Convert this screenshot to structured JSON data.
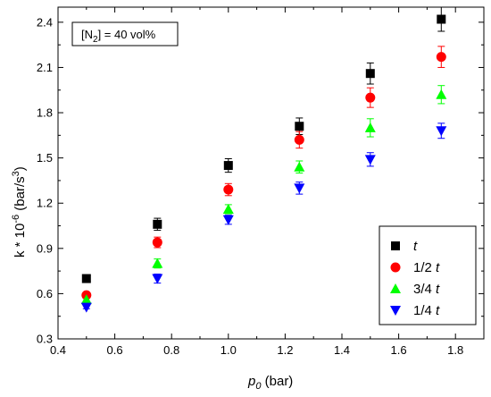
{
  "chart_data": {
    "type": "scatter",
    "annotation": {
      "prefix": "[N",
      "subscript": "2",
      "suffix": "] = 40 vol%"
    },
    "xlabel": {
      "main": "p",
      "sub": "0",
      "unit": " (bar)"
    },
    "ylabel": {
      "prefix": "k * 10",
      "sup": "-6",
      "mid": " (bar/s",
      "sup2": "3",
      "suffix": ")"
    },
    "xlim": [
      0.4,
      1.9
    ],
    "ylim": [
      0.3,
      2.5
    ],
    "x_ticks": [
      "0.4",
      "0.6",
      "0.8",
      "1.0",
      "1.2",
      "1.4",
      "1.6",
      "1.8"
    ],
    "y_ticks": [
      "0.3",
      "0.6",
      "0.9",
      "1.2",
      "1.5",
      "1.8",
      "2.1",
      "2.4"
    ],
    "x": [
      0.5,
      0.75,
      1.0,
      1.25,
      1.5,
      1.75
    ],
    "legend_position": "bottom-right",
    "series": [
      {
        "name_prefix": "",
        "name_t": "t",
        "marker": "square",
        "color": "#000000",
        "values": [
          0.7,
          1.06,
          1.45,
          1.71,
          2.06,
          2.42
        ],
        "errors": [
          0.015,
          0.04,
          0.045,
          0.055,
          0.07,
          0.08
        ]
      },
      {
        "name_prefix": "1/2 ",
        "name_t": "t",
        "marker": "circle",
        "color": "#ff0000",
        "values": [
          0.59,
          0.94,
          1.29,
          1.62,
          1.9,
          2.17
        ],
        "errors": [
          0.015,
          0.035,
          0.04,
          0.055,
          0.065,
          0.07
        ]
      },
      {
        "name_prefix": "3/4 ",
        "name_t": "t",
        "marker": "triangle-up",
        "color": "#00ff00",
        "values": [
          0.56,
          0.8,
          1.16,
          1.44,
          1.7,
          1.92
        ],
        "errors": [
          0.01,
          0.03,
          0.03,
          0.04,
          0.06,
          0.06
        ]
      },
      {
        "name_prefix": "1/4 ",
        "name_t": "t",
        "marker": "triangle-down",
        "color": "#0000ff",
        "values": [
          0.51,
          0.7,
          1.09,
          1.3,
          1.49,
          1.68
        ],
        "errors": [
          0.01,
          0.03,
          0.03,
          0.04,
          0.045,
          0.05
        ]
      }
    ]
  }
}
